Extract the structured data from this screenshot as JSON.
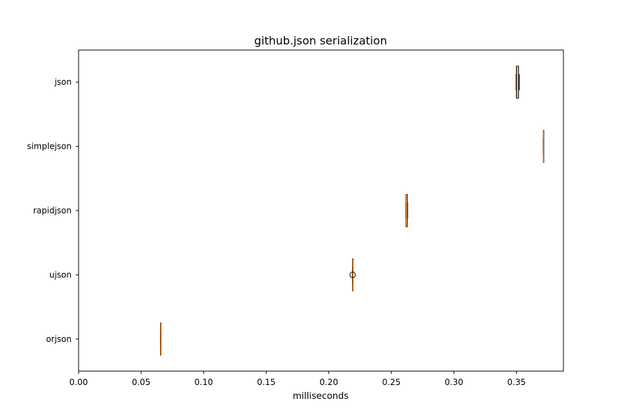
{
  "chart_data": {
    "type": "boxplot",
    "orientation": "horizontal",
    "title": "github.json serialization",
    "xlabel": "milliseconds",
    "ylabel": "",
    "xlim": [
      0,
      0.3875
    ],
    "xticks": [
      0.0,
      0.05,
      0.1,
      0.15,
      0.2,
      0.25,
      0.3,
      0.35
    ],
    "xtick_labels": [
      "0.00",
      "0.05",
      "0.10",
      "0.15",
      "0.20",
      "0.25",
      "0.30",
      "0.35"
    ],
    "grid": false,
    "categories": [
      "orjson",
      "ujson",
      "rapidjson",
      "simplejson",
      "json"
    ],
    "boxes": [
      {
        "label": "orjson",
        "whislo": 0.0653,
        "q1": 0.0654,
        "med": 0.0655,
        "q3": 0.0656,
        "whishi": 0.0657,
        "fliers": []
      },
      {
        "label": "ujson",
        "whislo": 0.2188,
        "q1": 0.2189,
        "med": 0.219,
        "q3": 0.2191,
        "whishi": 0.2193,
        "fliers": [
          0.219
        ]
      },
      {
        "label": "rapidjson",
        "whislo": 0.2615,
        "q1": 0.2616,
        "med": 0.2619,
        "q3": 0.2628,
        "whishi": 0.263,
        "fliers": []
      },
      {
        "label": "simplejson",
        "whislo": 0.3713,
        "q1": 0.3714,
        "med": 0.3715,
        "q3": 0.3716,
        "whishi": 0.3717,
        "fliers": []
      },
      {
        "label": "json",
        "whislo": 0.3497,
        "q1": 0.3499,
        "med": 0.3507,
        "q3": 0.3517,
        "whishi": 0.3523,
        "fliers": []
      }
    ],
    "colors": {
      "box": "#000000",
      "median": "#ff7f0e",
      "axis": "#000000"
    }
  }
}
